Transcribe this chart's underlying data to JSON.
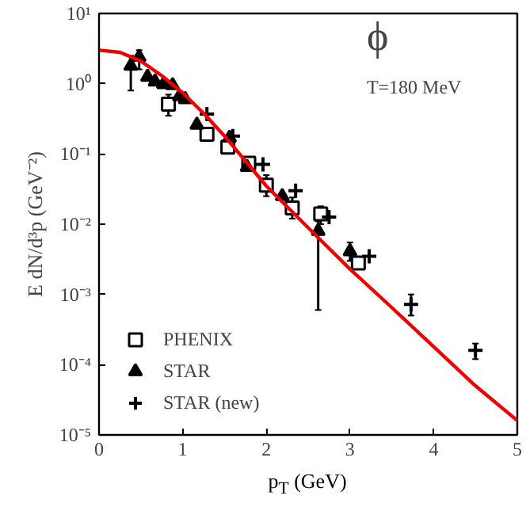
{
  "chart_data": {
    "type": "scatter",
    "xlabel": "p$_{T}$ (GeV)",
    "ylabel": "E dN/d³p (GeV⁻²)",
    "log": "y",
    "legend": "bottom left",
    "grid": false,
    "xlim": [
      0,
      5
    ],
    "xticks": [
      0,
      1,
      2,
      3,
      4,
      5
    ],
    "ylim": [
      1e-05,
      10
    ],
    "yticks": [
      {
        "value": 1e-05,
        "label": "10⁻⁵"
      },
      {
        "value": 0.0001,
        "label": "10⁻⁴"
      },
      {
        "value": 0.001,
        "label": "10⁻³"
      },
      {
        "value": 0.01,
        "label": "10⁻²"
      },
      {
        "value": 0.1,
        "label": "10⁻¹"
      },
      {
        "value": 1,
        "label": "10⁰"
      },
      {
        "value": 10,
        "label": "10¹"
      }
    ],
    "annotations": [
      "ϕ",
      "T=180 MeV"
    ],
    "series": [
      {
        "type": "line",
        "color": "#ee0000",
        "x": [
          0,
          0.25,
          0.5,
          0.75,
          1,
          1.25,
          1.5,
          2,
          2.5,
          3,
          3.5,
          4,
          4.5,
          5
        ],
        "values": [
          3.0,
          2.8,
          2.1,
          1.3,
          0.74,
          0.38,
          0.18,
          0.035,
          0.0089,
          0.0023,
          0.00065,
          0.00018,
          5e-05,
          1.6e-05
        ]
      },
      {
        "name": "PHENIX",
        "color": "#000000",
        "marker": "square",
        "x": [
          0.83,
          1.29,
          1.54,
          1.79,
          2.0,
          2.31,
          2.65,
          3.1
        ],
        "values": [
          0.51,
          0.19,
          0.125,
          0.074,
          0.036,
          0.017,
          0.014,
          0.0028
        ],
        "errors": [
          [
            0.35,
            0.7
          ],
          null,
          null,
          null,
          [
            0.025,
            0.05
          ],
          [
            0.012,
            0.024
          ],
          [
            0.01,
            0.018
          ],
          null
        ]
      },
      {
        "name": "STAR",
        "color": "#000000",
        "marker": "triangle",
        "x": [
          0.38,
          0.48,
          0.58,
          0.67,
          0.77,
          0.88,
          0.96,
          1.03,
          1.17,
          1.56,
          1.77,
          2.19,
          2.62,
          3.0
        ],
        "values": [
          1.8,
          2.4,
          1.25,
          1.07,
          0.98,
          0.95,
          0.66,
          0.6,
          0.26,
          0.17,
          0.065,
          0.025,
          0.008,
          0.0041
        ],
        "errors": [
          [
            0.8,
            2.5
          ],
          [
            1.6,
            3.0
          ],
          null,
          null,
          null,
          null,
          null,
          null,
          null,
          null,
          null,
          null,
          [
            0.0006,
            0.011
          ],
          [
            0.003,
            0.0055
          ]
        ]
      },
      {
        "name": "STAR (new)",
        "color": "#000000",
        "marker": "cross",
        "x": [
          1.29,
          1.6,
          1.96,
          2.35,
          2.75,
          3.23,
          3.73,
          4.5
        ],
        "values": [
          0.37,
          0.18,
          0.071,
          0.03,
          0.0126,
          0.0035,
          0.00072,
          0.00016
        ],
        "errors": [
          null,
          null,
          null,
          null,
          null,
          null,
          [
            0.0005,
            0.001
          ],
          [
            0.00012,
            0.0002
          ]
        ]
      }
    ]
  }
}
